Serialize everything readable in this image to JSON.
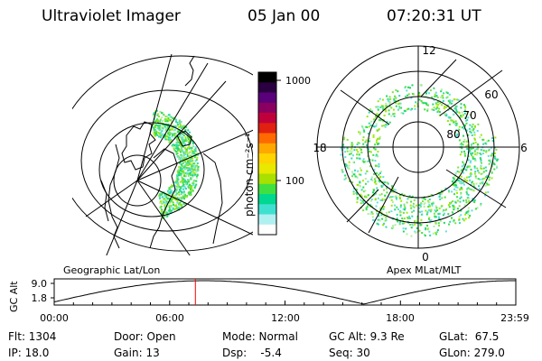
{
  "header": {
    "title": "Ultraviolet Imager",
    "date": "05 Jan 00",
    "time": "07:20:31 UT"
  },
  "geo_panel": {
    "label": "Geographic Lat/Lon"
  },
  "polar_panel": {
    "label": "Apex  MLat/MLT",
    "mlt_labels": [
      "12",
      "18",
      "6",
      "0"
    ],
    "lat_labels": [
      "60",
      "70",
      "80"
    ]
  },
  "colorbar": {
    "unit_label_text": "photon cm⁻²s⁻¹",
    "ticks": [
      "1000",
      "100"
    ],
    "colors": [
      "#000000",
      "#2a0040",
      "#5a007a",
      "#8a0060",
      "#c0003a",
      "#e02010",
      "#ff6a00",
      "#ffa800",
      "#ffd400",
      "#e8e800",
      "#a8e000",
      "#40e040",
      "#00d890",
      "#40e0d0",
      "#b0f0f0",
      "#ffffff"
    ]
  },
  "altitude_plot": {
    "ylabel": "GC Alt",
    "yticks": [
      "9.0",
      "1.8"
    ],
    "xticks": [
      "00:00",
      "06:00",
      "12:00",
      "18:00",
      "23:59"
    ],
    "current_time_hours": 7.34,
    "current_time_color": "#ff0000"
  },
  "info": {
    "flt": "Flt: 1304",
    "ip": "IP: 18.0",
    "door": "Door: Open",
    "gain": "Gain: 13",
    "mode": "Mode: Normal",
    "dsp": "Dsp:    -5.4",
    "gc_alt": "GC Alt: 9.3 Re",
    "seq": "Seq: 30",
    "glat": "GLat:  67.5",
    "glon": "GLon: 279.0"
  }
}
